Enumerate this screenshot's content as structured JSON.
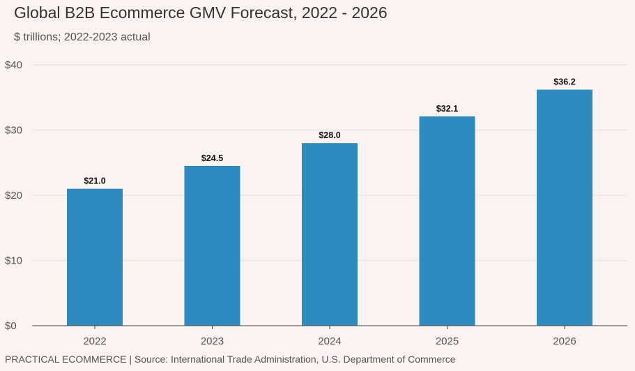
{
  "header": {
    "title": "Global B2B Ecommerce GMV Forecast, 2022 - 2026",
    "subtitle": "$ trillions; 2022-2023 actual"
  },
  "footer": {
    "source": "PRACTICAL ECOMMERCE | Source: International Trade Administration, U.S. Department of Commerce"
  },
  "colors": {
    "bar": "#2e8bc0",
    "grid": "#e6e2df",
    "axis": "#444444",
    "background": "#faf3ef"
  },
  "chart_data": {
    "type": "bar",
    "categories": [
      "2022",
      "2023",
      "2024",
      "2025",
      "2026"
    ],
    "values": [
      21.0,
      24.5,
      28.0,
      32.1,
      36.2
    ],
    "data_labels": [
      "$21.0",
      "$24.5",
      "$28.0",
      "$32.1",
      "$36.2"
    ],
    "y_ticks": [
      0,
      10,
      20,
      30,
      40
    ],
    "y_tick_labels": [
      "$0",
      "$10",
      "$20",
      "$30",
      "$40"
    ],
    "ylim": [
      0,
      40
    ],
    "grid": true,
    "legend": "none"
  }
}
